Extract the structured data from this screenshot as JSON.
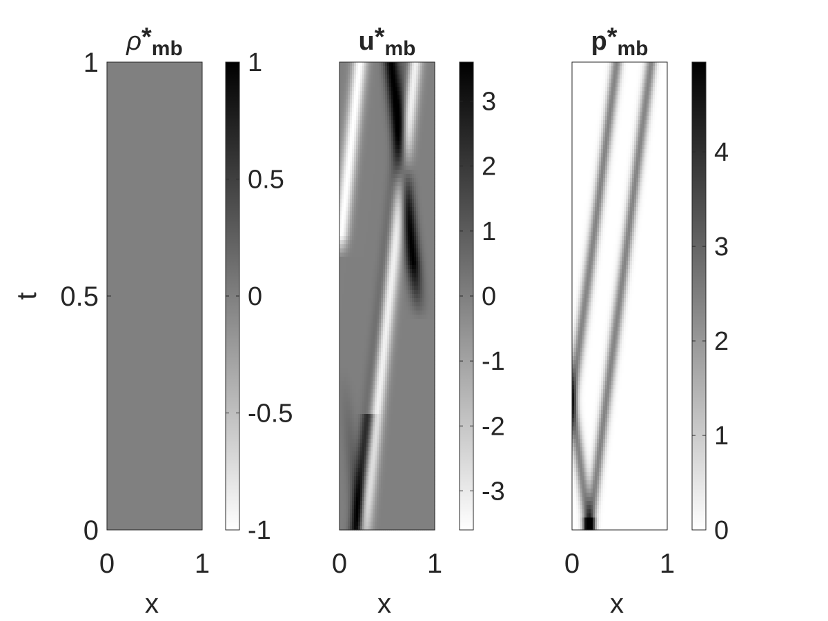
{
  "chart_data": [
    {
      "type": "heatmap",
      "title": {
        "base": "ρ",
        "sup": "*",
        "sub": "mb"
      },
      "xlabel": "x",
      "ylabel": "t",
      "xlim": [
        0,
        1
      ],
      "ylim": [
        0,
        1
      ],
      "xticks": [
        {
          "value": 0,
          "label": "0"
        },
        {
          "value": 1,
          "label": "1"
        }
      ],
      "yticks": [
        {
          "value": 0,
          "label": "0"
        },
        {
          "value": 0.5,
          "label": "0.5"
        },
        {
          "value": 1,
          "label": "1"
        }
      ],
      "colormap": "gray-reversed",
      "color_range": [
        -1,
        1
      ],
      "field": "constant",
      "constant_value": 0,
      "colorbar": {
        "ticks": [
          {
            "value": -1,
            "label": "-1"
          },
          {
            "value": -0.5,
            "label": "-0.5"
          },
          {
            "value": 0,
            "label": "0"
          },
          {
            "value": 0.5,
            "label": "0.5"
          },
          {
            "value": 1,
            "label": "1"
          }
        ]
      }
    },
    {
      "type": "heatmap",
      "title": {
        "base": "u",
        "sup": "*",
        "sub": "mb"
      },
      "xlabel": "x",
      "xlim": [
        0,
        1
      ],
      "ylim": [
        0,
        1
      ],
      "xticks": [
        {
          "value": 0,
          "label": "0"
        },
        {
          "value": 1,
          "label": "1"
        }
      ],
      "colormap": "gray-reversed",
      "color_range": [
        -3.6,
        3.6
      ],
      "field": "velocity-waves",
      "colorbar": {
        "ticks": [
          {
            "value": -3,
            "label": "-3"
          },
          {
            "value": -2,
            "label": "-2"
          },
          {
            "value": -1,
            "label": "-1"
          },
          {
            "value": 0,
            "label": "0"
          },
          {
            "value": 1,
            "label": "1"
          },
          {
            "value": 2,
            "label": "2"
          },
          {
            "value": 3,
            "label": "3"
          }
        ]
      }
    },
    {
      "type": "heatmap",
      "title": {
        "base": "p",
        "sup": "*",
        "sub": "mb"
      },
      "xlabel": "x",
      "xlim": [
        0,
        1
      ],
      "ylim": [
        0,
        1
      ],
      "xticks": [
        {
          "value": 0,
          "label": "0"
        },
        {
          "value": 1,
          "label": "1"
        }
      ],
      "colormap": "gray-reversed",
      "color_range": [
        0,
        4.95
      ],
      "field": "pressure-waves",
      "colorbar": {
        "ticks": [
          {
            "value": 0,
            "label": "0"
          },
          {
            "value": 1,
            "label": "1"
          },
          {
            "value": 2,
            "label": "2"
          },
          {
            "value": 3,
            "label": "3"
          },
          {
            "value": 4,
            "label": "4"
          }
        ]
      }
    }
  ]
}
